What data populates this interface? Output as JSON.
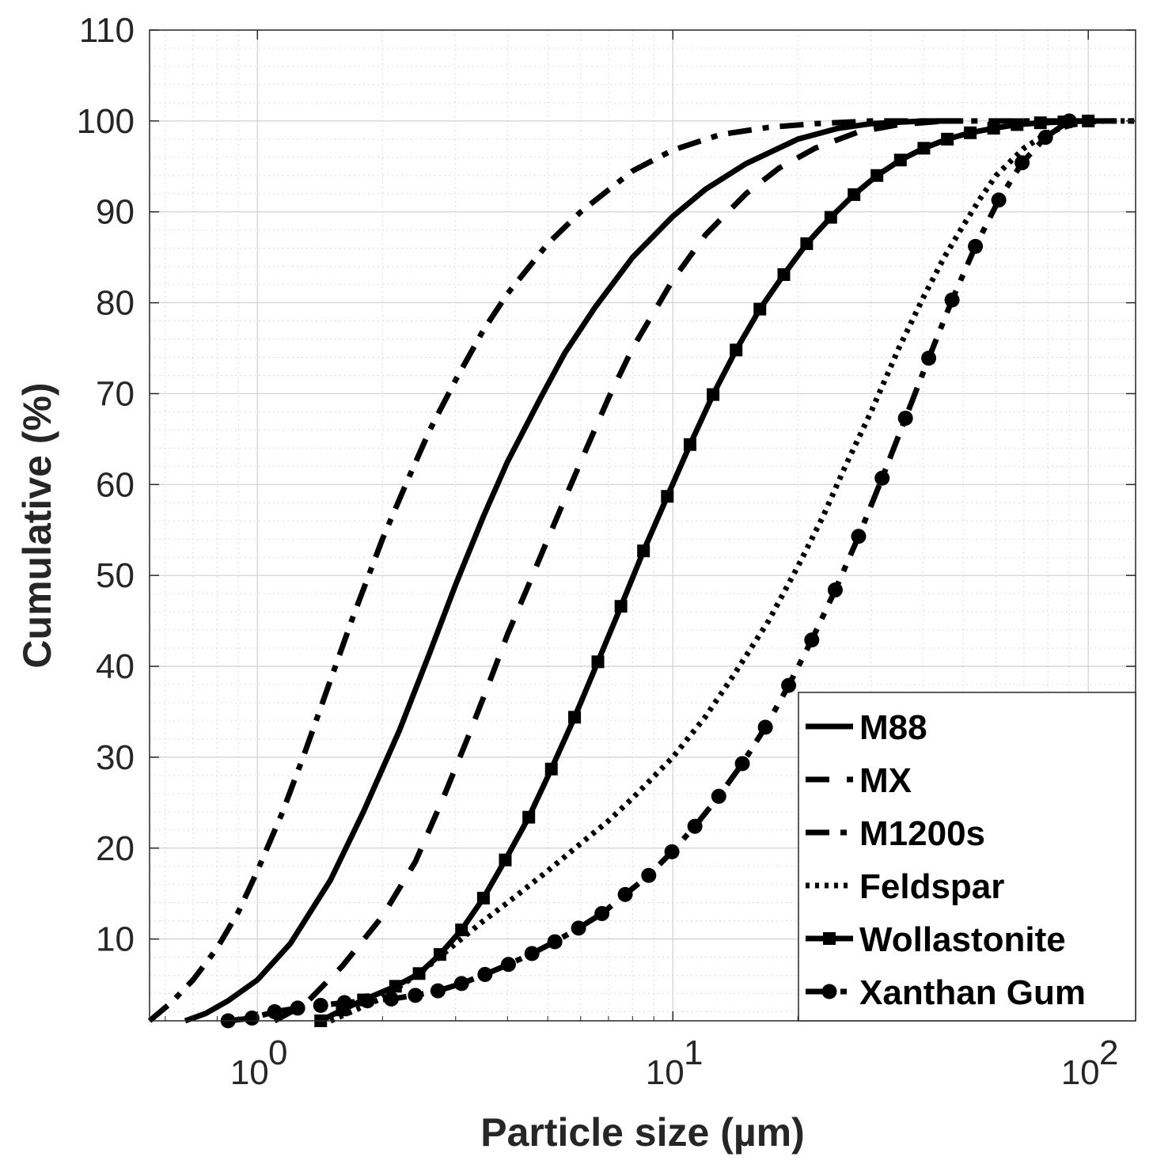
{
  "chart_data": {
    "type": "line",
    "title": "",
    "xlabel": "Particle size (µm)",
    "ylabel": "Cumulative (%)",
    "xscale": "log",
    "xlim": [
      0.55,
      130
    ],
    "ylim": [
      1,
      110
    ],
    "grid": true,
    "minor_grid": true,
    "legend_position": "bottom-right",
    "x_ticks": [
      {
        "value": 1,
        "base": "10",
        "exp": "0"
      },
      {
        "value": 10,
        "base": "10",
        "exp": "1"
      },
      {
        "value": 100,
        "base": "10",
        "exp": "2"
      }
    ],
    "y_ticks": [
      {
        "value": 10,
        "label": "10"
      },
      {
        "value": 20,
        "label": "20"
      },
      {
        "value": 30,
        "label": "30"
      },
      {
        "value": 40,
        "label": "40"
      },
      {
        "value": 50,
        "label": "50"
      },
      {
        "value": 60,
        "label": "60"
      },
      {
        "value": 70,
        "label": "70"
      },
      {
        "value": 80,
        "label": "80"
      },
      {
        "value": 90,
        "label": "90"
      },
      {
        "value": 100,
        "label": "100"
      },
      {
        "value": 110,
        "label": "110"
      }
    ],
    "series": [
      {
        "name": "M88",
        "style": "solid",
        "marker": "none",
        "color": "#000000",
        "x": [
          0.67,
          0.75,
          0.85,
          1.0,
          1.2,
          1.5,
          1.8,
          2.2,
          2.6,
          3.0,
          3.5,
          4.0,
          4.8,
          5.5,
          6.5,
          8,
          10,
          12,
          15,
          20,
          25,
          30,
          40,
          50
        ],
        "y": [
          1,
          1.8,
          3.2,
          5.5,
          9.5,
          16.5,
          24,
          33,
          41.5,
          49,
          56.5,
          62.5,
          69.5,
          74.5,
          79.5,
          85,
          89.5,
          92.5,
          95.3,
          98,
          99.2,
          99.7,
          100,
          100
        ]
      },
      {
        "name": "MX",
        "style": "dashed",
        "marker": "none",
        "color": "#000000",
        "x": [
          1.1,
          1.3,
          1.6,
          2.0,
          2.4,
          2.8,
          3.2,
          3.6,
          4.0,
          4.5,
          5.0,
          6.0,
          7.0,
          8.0,
          10,
          12,
          15,
          18,
          22,
          28,
          35,
          45
        ],
        "y": [
          1,
          2.8,
          7.0,
          12.5,
          18.5,
          25.5,
          32,
          38,
          43.5,
          49,
          54,
          62.5,
          69.5,
          75,
          82.5,
          87.5,
          92,
          94.8,
          97,
          98.8,
          99.6,
          100
        ]
      },
      {
        "name": "M1200s",
        "style": "dashdot",
        "marker": "none",
        "color": "#000000",
        "x": [
          0.55,
          0.62,
          0.7,
          0.8,
          0.9,
          1.0,
          1.15,
          1.3,
          1.5,
          1.7,
          2.0,
          2.3,
          2.6,
          3.0,
          3.5,
          4.0,
          5.0,
          6.0,
          8.0,
          10,
          13,
          17,
          22,
          30,
          40,
          60,
          100,
          130
        ],
        "y": [
          1,
          3,
          5.5,
          9,
          13,
          17.5,
          24,
          30.5,
          38.5,
          45.5,
          54,
          60.5,
          66,
          71.5,
          77,
          81,
          86.5,
          90,
          94.5,
          96.8,
          98.5,
          99.3,
          99.7,
          100,
          100,
          100,
          100,
          100
        ]
      },
      {
        "name": "Feldspar",
        "style": "dotted",
        "marker": "none",
        "color": "#000000",
        "x": [
          1.5,
          2.0,
          2.5,
          3.0,
          3.5,
          4.0,
          5.0,
          6.0,
          7.0,
          8.0,
          10,
          12,
          14,
          17,
          20,
          23,
          26,
          30,
          35,
          40,
          45,
          50,
          55,
          60,
          70,
          80,
          90,
          100,
          110,
          130
        ],
        "y": [
          1,
          3.5,
          6.5,
          9.5,
          12,
          14,
          17.5,
          20.5,
          23,
          25.5,
          30,
          34.5,
          39,
          45,
          51,
          56.5,
          62,
          68,
          75,
          80.5,
          85,
          88.5,
          91.5,
          94,
          97,
          98.7,
          99.5,
          99.9,
          100,
          100
        ]
      },
      {
        "name": "Wollastonite",
        "style": "solid",
        "marker": "square",
        "color": "#000000",
        "x": [
          1.42,
          1.6,
          1.8,
          2.15,
          2.45,
          2.75,
          3.1,
          3.5,
          3.95,
          4.5,
          5.1,
          5.8,
          6.6,
          7.5,
          8.5,
          9.7,
          11.0,
          12.5,
          14.2,
          16.2,
          18.5,
          21.0,
          24.0,
          27.3,
          31.0,
          35.3,
          40.2,
          45.8,
          52.0,
          59.2,
          67.4,
          76.7,
          87.4,
          100
        ],
        "y": [
          1,
          2.2,
          3.3,
          4.8,
          6.2,
          8.3,
          11,
          14.5,
          18.7,
          23.4,
          28.7,
          34.4,
          40.5,
          46.6,
          52.7,
          58.7,
          64.4,
          69.9,
          74.8,
          79.3,
          83.1,
          86.5,
          89.4,
          91.9,
          94,
          95.7,
          97,
          98,
          98.7,
          99.2,
          99.6,
          99.8,
          99.9,
          100
        ]
      },
      {
        "name": "Xanthan Gum",
        "style": "dashdot",
        "marker": "circle",
        "color": "#000000",
        "x": [
          0.85,
          0.97,
          1.1,
          1.25,
          1.42,
          1.62,
          1.84,
          2.1,
          2.4,
          2.72,
          3.1,
          3.53,
          4.02,
          4.58,
          5.2,
          5.93,
          6.75,
          7.68,
          8.75,
          9.95,
          11.3,
          12.9,
          14.7,
          16.7,
          19.0,
          21.6,
          24.6,
          28.0,
          31.9,
          36.3,
          41.3,
          47.0,
          53.5,
          60.9,
          69.3,
          78.9,
          90
        ],
        "y": [
          1,
          1.3,
          2,
          2.4,
          2.7,
          3.0,
          3.2,
          3.4,
          3.8,
          4.3,
          5.1,
          6.1,
          7.2,
          8.4,
          9.7,
          11.2,
          12.8,
          14.9,
          17,
          19.6,
          22.4,
          25.7,
          29.3,
          33.3,
          37.9,
          42.9,
          48.4,
          54.3,
          60.7,
          67.3,
          73.9,
          80.3,
          86.2,
          91.3,
          95.4,
          98.2,
          100
        ]
      }
    ]
  }
}
